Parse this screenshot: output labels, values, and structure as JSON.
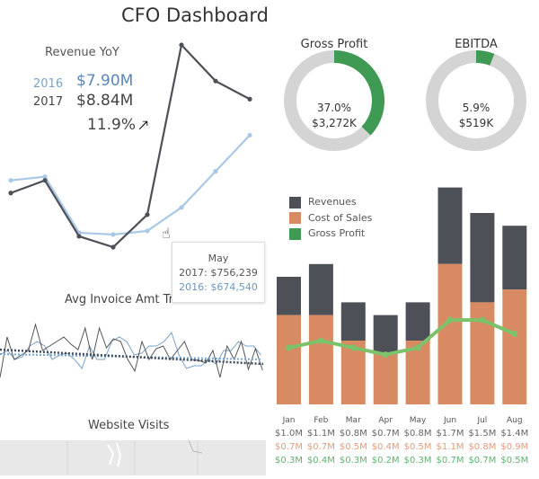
{
  "title": "CFO Dashboard",
  "revenue_yoy": {
    "title": "Revenue YoY",
    "year_2016_label": "2016",
    "year_2016_value": "$7.90M",
    "year_2017_label": "2017",
    "year_2017_value": "$8.84M",
    "change": "11.9%",
    "change_icon": "arrow-up-icon",
    "series_2017": [
      0.88,
      0.95,
      0.64,
      0.58,
      0.76,
      1.7,
      1.5,
      1.4
    ],
    "series_2016": [
      0.95,
      0.97,
      0.66,
      0.65,
      0.67,
      0.8,
      1.0,
      1.2
    ],
    "colors": {
      "2016": "#a9c8e6",
      "2017": "#4e5058"
    },
    "tooltip": {
      "month": "May",
      "line_2017": "2017: $756,239",
      "line_2016": "2016: $674,540"
    }
  },
  "avg_invoice": {
    "title": "Avg Invoice Amt Trend"
  },
  "website_visits": {
    "title": "Website Visits"
  },
  "gross_profit": {
    "title": "Gross Profit",
    "percent": "37.0%",
    "value": "$3,272K",
    "fraction": 0.37,
    "color": "#3f9a53"
  },
  "ebitda": {
    "title": "EBITDA",
    "percent": "5.9%",
    "value": "$519K",
    "fraction": 0.059,
    "color": "#3f9a53"
  },
  "chart_data": {
    "type": "bar",
    "categories": [
      "Jan",
      "Feb",
      "Mar",
      "Apr",
      "May",
      "Jun",
      "Jul",
      "Aug"
    ],
    "legend": [
      "Revenues",
      "Cost of Sales",
      "Gross Profit"
    ],
    "series": [
      {
        "name": "Revenues",
        "values": [
          1.0,
          1.1,
          0.8,
          0.7,
          0.8,
          1.7,
          1.5,
          1.4
        ],
        "labels": [
          "$1.0M",
          "$1.1M",
          "$0.8M",
          "$0.7M",
          "$0.8M",
          "$1.7M",
          "$1.5M",
          "$1.4M"
        ],
        "color": "#4e5058"
      },
      {
        "name": "Cost of Sales",
        "values": [
          0.7,
          0.7,
          0.5,
          0.4,
          0.5,
          1.1,
          0.8,
          0.9
        ],
        "labels": [
          "$0.7M",
          "$0.7M",
          "$0.5M",
          "$0.4M",
          "$0.5M",
          "$1.1M",
          "$0.8M",
          "$0.9M"
        ],
        "color": "#d88a62"
      },
      {
        "name": "Gross Profit",
        "values": [
          0.3,
          0.4,
          0.3,
          0.2,
          0.3,
          0.7,
          0.7,
          0.5
        ],
        "labels": [
          "$0.3M",
          "$0.4M",
          "$0.3M",
          "$0.2M",
          "$0.3M",
          "$0.7M",
          "$0.7M",
          "$0.5M"
        ],
        "color": "#7cc26b"
      }
    ]
  }
}
